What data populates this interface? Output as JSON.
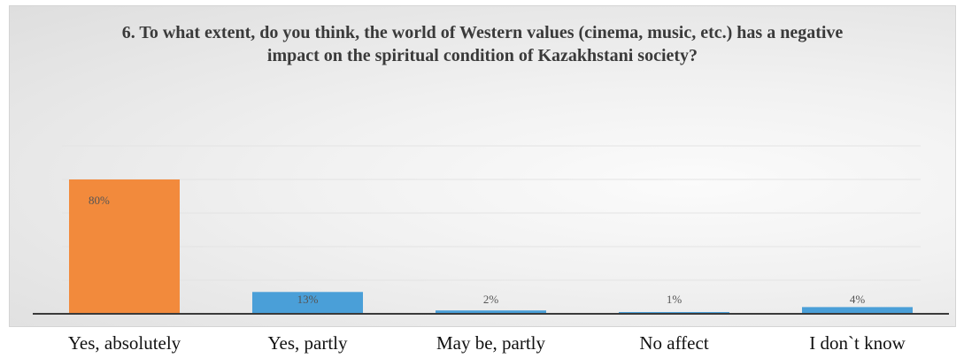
{
  "chart_data": {
    "type": "bar",
    "title": "6. To what extent, do you think, the world of Western values (cinema, music, etc.) has a negative impact on the spiritual condition of Kazakhstani society?",
    "categories": [
      "Yes, absolutely",
      "Yes, partly",
      "May be, partly",
      "No affect",
      "I don`t know"
    ],
    "values": [
      80,
      13,
      2,
      1,
      4
    ],
    "data_labels": [
      "80%",
      "13%",
      "2%",
      "1%",
      "4%"
    ],
    "ylim": [
      0,
      100
    ],
    "grid": true,
    "legend": "none",
    "colors": [
      "#f28a3c",
      "#4a9fd8",
      "#4a9fd8",
      "#4a9fd8",
      "#4a9fd8"
    ],
    "xlabel": "",
    "ylabel": ""
  }
}
